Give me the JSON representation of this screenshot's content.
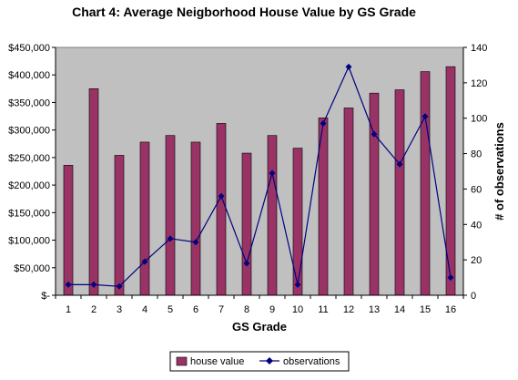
{
  "chart_data": {
    "type": "bar",
    "title": "Chart 4: Average Neigborhood House Value by GS Grade",
    "xlabel": "GS Grade",
    "ylabel": "",
    "y2label": "# of observations",
    "categories": [
      "1",
      "2",
      "3",
      "4",
      "5",
      "6",
      "7",
      "8",
      "9",
      "10",
      "11",
      "12",
      "13",
      "14",
      "15",
      "16"
    ],
    "ylim": [
      0,
      450000
    ],
    "y2lim": [
      0,
      140
    ],
    "y_ticks": [
      "$-",
      "$50,000",
      "$100,000",
      "$150,000",
      "$200,000",
      "$250,000",
      "$300,000",
      "$350,000",
      "$400,000",
      "$450,000"
    ],
    "y2_ticks": [
      "0",
      "20",
      "40",
      "60",
      "80",
      "100",
      "120",
      "140"
    ],
    "grid": false,
    "plot_background": "#c0c0c0",
    "legend_position": "bottom",
    "series": [
      {
        "name": "house value",
        "type": "bar",
        "axis": "left",
        "color": "#993366",
        "values": [
          236000,
          375000,
          254000,
          278000,
          290000,
          278000,
          312000,
          258000,
          290000,
          267000,
          322000,
          340000,
          367000,
          373000,
          406000,
          415000
        ]
      },
      {
        "name": "observations",
        "type": "line",
        "axis": "right",
        "color": "#000080",
        "marker": "diamond",
        "values": [
          6,
          6,
          5,
          19,
          32,
          30,
          56,
          18,
          69,
          6,
          97,
          129,
          91,
          74,
          101,
          10
        ]
      }
    ]
  }
}
